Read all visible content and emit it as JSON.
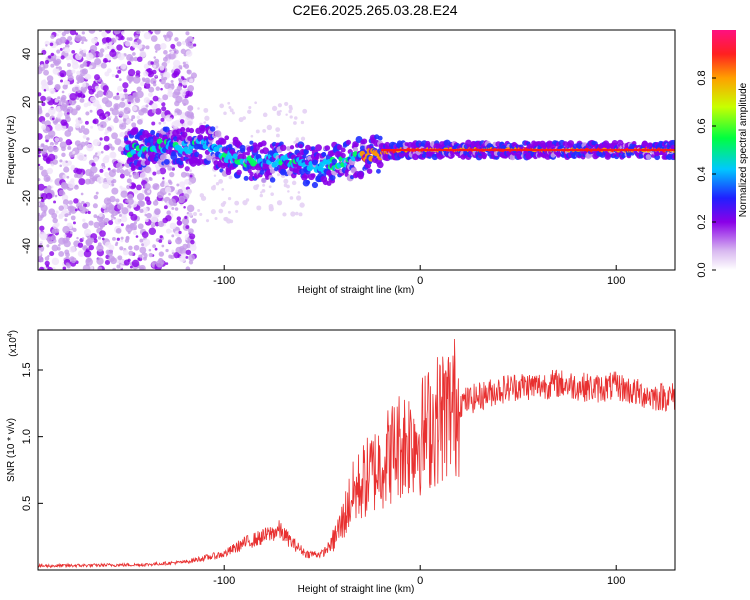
{
  "title": "C2E6.2025.265.03.28.E24",
  "chart_data": [
    {
      "type": "heatmap",
      "name": "spectrogram",
      "xlabel": "Height of straight line (km)",
      "ylabel": "Frequency (Hz)",
      "xlim": [
        -195,
        130
      ],
      "ylim": [
        -50,
        50
      ],
      "xticks": [
        -100,
        0,
        100
      ],
      "yticks": [
        -40,
        -20,
        0,
        20,
        40
      ],
      "colorbar": {
        "label": "Normalized spectral amplitude",
        "range": [
          0,
          1
        ],
        "ticks": [
          "0.0",
          "0.2",
          "0.4",
          "0.6",
          "0.8"
        ],
        "tick_values": [
          0,
          0.2,
          0.4,
          0.6,
          0.8
        ]
      },
      "ridge": {
        "description_points_x": [
          -140,
          -120,
          -110,
          -100,
          -90,
          -80,
          -70,
          -60,
          -50,
          -40,
          -30,
          -20,
          -10,
          0,
          50,
          100,
          130
        ],
        "description_points_y": [
          2,
          1,
          3,
          -2,
          -4,
          -5,
          -4,
          -6,
          -7,
          -5,
          -3,
          -1,
          0,
          0,
          0,
          0,
          0
        ]
      }
    },
    {
      "type": "line",
      "name": "snr",
      "xlabel": "Height of straight line (km)",
      "ylabel": "SNR (10 * v/v)",
      "scale_label": "(x10",
      "scale_exp": "4",
      "xlim": [
        -195,
        130
      ],
      "ylim": [
        0,
        1.8
      ],
      "xticks": [
        -100,
        0,
        100
      ],
      "yticks": [
        0.5,
        1.0,
        1.5
      ],
      "ytick_labels": [
        "0.5",
        "1.0",
        "1.5"
      ],
      "color": "#e83030",
      "envelope_x": [
        -195,
        -140,
        -120,
        -100,
        -90,
        -80,
        -72,
        -65,
        -58,
        -50,
        -45,
        -40,
        -35,
        -30,
        -20,
        -10,
        0,
        10,
        20,
        30,
        40,
        50,
        60,
        70,
        80,
        90,
        100,
        110,
        120,
        130
      ],
      "envelope_y": [
        0.03,
        0.04,
        0.06,
        0.12,
        0.2,
        0.25,
        0.3,
        0.2,
        0.12,
        0.12,
        0.2,
        0.35,
        0.55,
        0.65,
        0.8,
        0.95,
        1.0,
        1.15,
        1.25,
        1.3,
        1.35,
        1.38,
        1.38,
        1.4,
        1.38,
        1.36,
        1.38,
        1.33,
        1.3,
        1.3
      ]
    }
  ]
}
